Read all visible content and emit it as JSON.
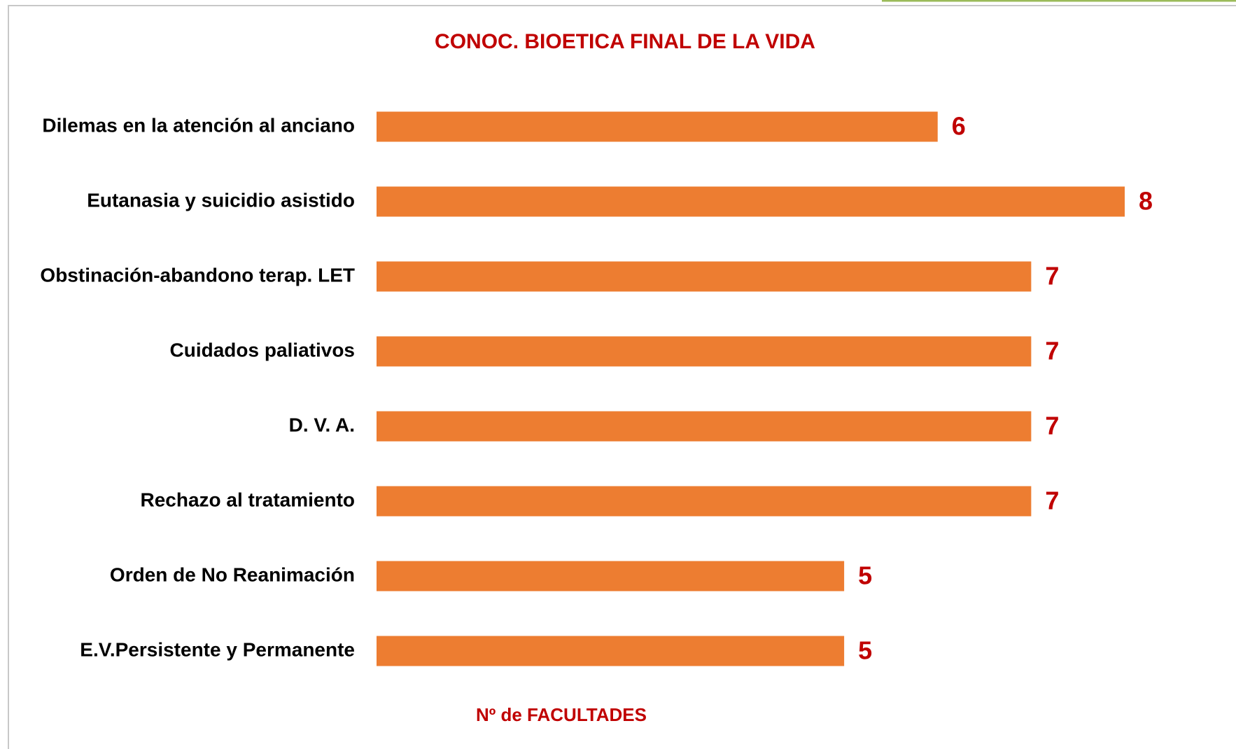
{
  "chart_data": {
    "type": "bar",
    "orientation": "horizontal",
    "title": "CONOC. BIOETICA FINAL DE LA VIDA",
    "xlabel": "Nº de FACULTADES",
    "categories": [
      "Dilemas en la atención al anciano",
      "Eutanasia y suicidio asistido",
      "Obstinación-abandono terap. LET",
      "Cuidados paliativos",
      "D. V. A.",
      "Rechazo al tratamiento",
      "Orden de No Reanimación",
      "E.V.Persistente y Permanente"
    ],
    "values": [
      6,
      8,
      7,
      7,
      7,
      7,
      5,
      5
    ],
    "color": "#ed7d31"
  }
}
